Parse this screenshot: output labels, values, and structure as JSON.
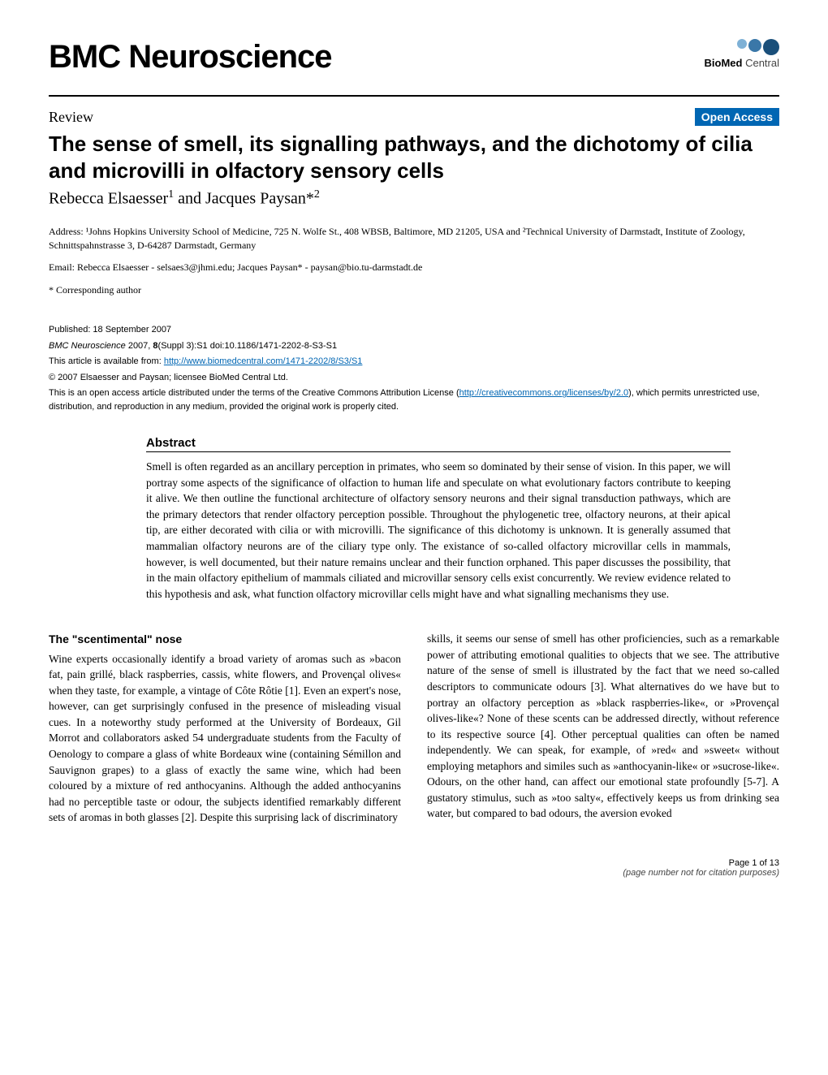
{
  "journal": {
    "name": "BMC Neuroscience",
    "logo_colors": [
      "#7eb1d6",
      "#3a77a8",
      "#1a4f7a"
    ],
    "logo_text_prefix": "BioMed",
    "logo_text_suffix": " Central"
  },
  "review_label": "Review",
  "open_access_badge": "Open Access",
  "open_access_bg": "#0066b3",
  "article": {
    "title": "The sense of smell, its signalling pathways, and the dichotomy of cilia and microvilli in olfactory sensory cells",
    "authors_html": "Rebecca Elsaesser<sup>1</sup> and Jacques Paysan*<sup>2</sup>",
    "affiliations": "Address: ¹Johns Hopkins University School of Medicine, 725 N. Wolfe St., 408 WBSB, Baltimore, MD 21205, USA and ²Technical University of Darmstadt, Institute of Zoology, Schnittspahnstrasse 3, D-64287 Darmstadt, Germany",
    "emails": "Email: Rebecca Elsaesser - selsaes3@jhmi.edu; Jacques Paysan* - paysan@bio.tu-darmstadt.de",
    "corresponding": "* Corresponding author"
  },
  "pub": {
    "published": "Published: 18 September 2007",
    "citation_html": "<span class=\"ital\">BMC Neuroscience</span> 2007, <b>8</b>(Suppl 3):S1   doi:10.1186/1471-2202-8-S3-S1",
    "availability_prefix": "This article is available from: ",
    "availability_url": "http://www.biomedcentral.com/1471-2202/8/S3/S1",
    "copyright": "© 2007 Elsaesser and Paysan; licensee BioMed Central Ltd.",
    "license_prefix": "This is an open access article distributed under the terms of the Creative Commons Attribution License (",
    "license_url": "http://creativecommons.org/licenses/by/2.0",
    "license_suffix": "), which permits unrestricted use, distribution, and reproduction in any medium, provided the original work is properly cited."
  },
  "abstract": {
    "heading": "Abstract",
    "text": "Smell is often regarded as an ancillary perception in primates, who seem so dominated by their sense of vision. In this paper, we will portray some aspects of the significance of olfaction to human life and speculate on what evolutionary factors contribute to keeping it alive. We then outline the functional architecture of olfactory sensory neurons and their signal transduction pathways, which are the primary detectors that render olfactory perception possible. Throughout the phylogenetic tree, olfactory neurons, at their apical tip, are either decorated with cilia or with microvilli. The significance of this dichotomy is unknown. It is generally assumed that mammalian olfactory neurons are of the ciliary type only. The existance of so-called olfactory microvillar cells in mammals, however, is well documented, but their nature remains unclear and their function orphaned. This paper discusses the possibility, that in the main olfactory epithelium of mammals ciliated and microvillar sensory cells exist concurrently. We review evidence related to this hypothesis and ask, what function olfactory microvillar cells might have and what signalling mechanisms they use."
  },
  "body": {
    "section_heading": "The \"scentimental\" nose",
    "col1": "Wine experts occasionally identify a broad variety of aromas such as »bacon fat, pain grillé, black raspberries, cassis, white flowers, and Provençal olives« when they taste, for example, a vintage of Côte Rôtie [1]. Even an expert's nose, however, can get surprisingly confused in the presence of misleading visual cues. In a noteworthy study performed at the University of Bordeaux, Gil Morrot and collaborators asked 54 undergraduate students from the Faculty of Oenology to compare a glass of white Bordeaux wine (containing Sémillon and Sauvignon grapes) to a glass of exactly the same wine, which had been coloured by a mixture of red anthocyanins. Although the added anthocyanins had no perceptible taste or odour, the subjects identified remarkably different sets of aromas in both glasses [2]. Despite this surprising lack of discriminatory",
    "col2": "skills, it seems our sense of smell has other proficiencies, such as a remarkable power of attributing emotional qualities to objects that we see. The attributive nature of the sense of smell is illustrated by the fact that we need so-called descriptors to communicate odours [3]. What alternatives do we have but to portray an olfactory perception as »black raspberries-like«, or »Provençal olives-like«? None of these scents can be addressed directly, without reference to its respective source [4]. Other perceptual qualities can often be named independently. We can speak, for example, of »red« and »sweet« without employing metaphors and similes such as »anthocyanin-like« or »sucrose-like«. Odours, on the other hand, can affect our emotional state profoundly [5-7]. A gustatory stimulus, such as »too salty«, effectively keeps us from drinking sea water, but compared to bad odours, the aversion evoked"
  },
  "footer": {
    "page": "Page 1 of 13",
    "note": "(page number not for citation purposes)"
  },
  "colors": {
    "text": "#000000",
    "link": "#0066b3",
    "background": "#ffffff"
  },
  "typography": {
    "journal_title_fontsize": 40,
    "article_title_fontsize": 26,
    "authors_fontsize": 20,
    "body_fontsize": 13.5,
    "small_fontsize": 11
  }
}
